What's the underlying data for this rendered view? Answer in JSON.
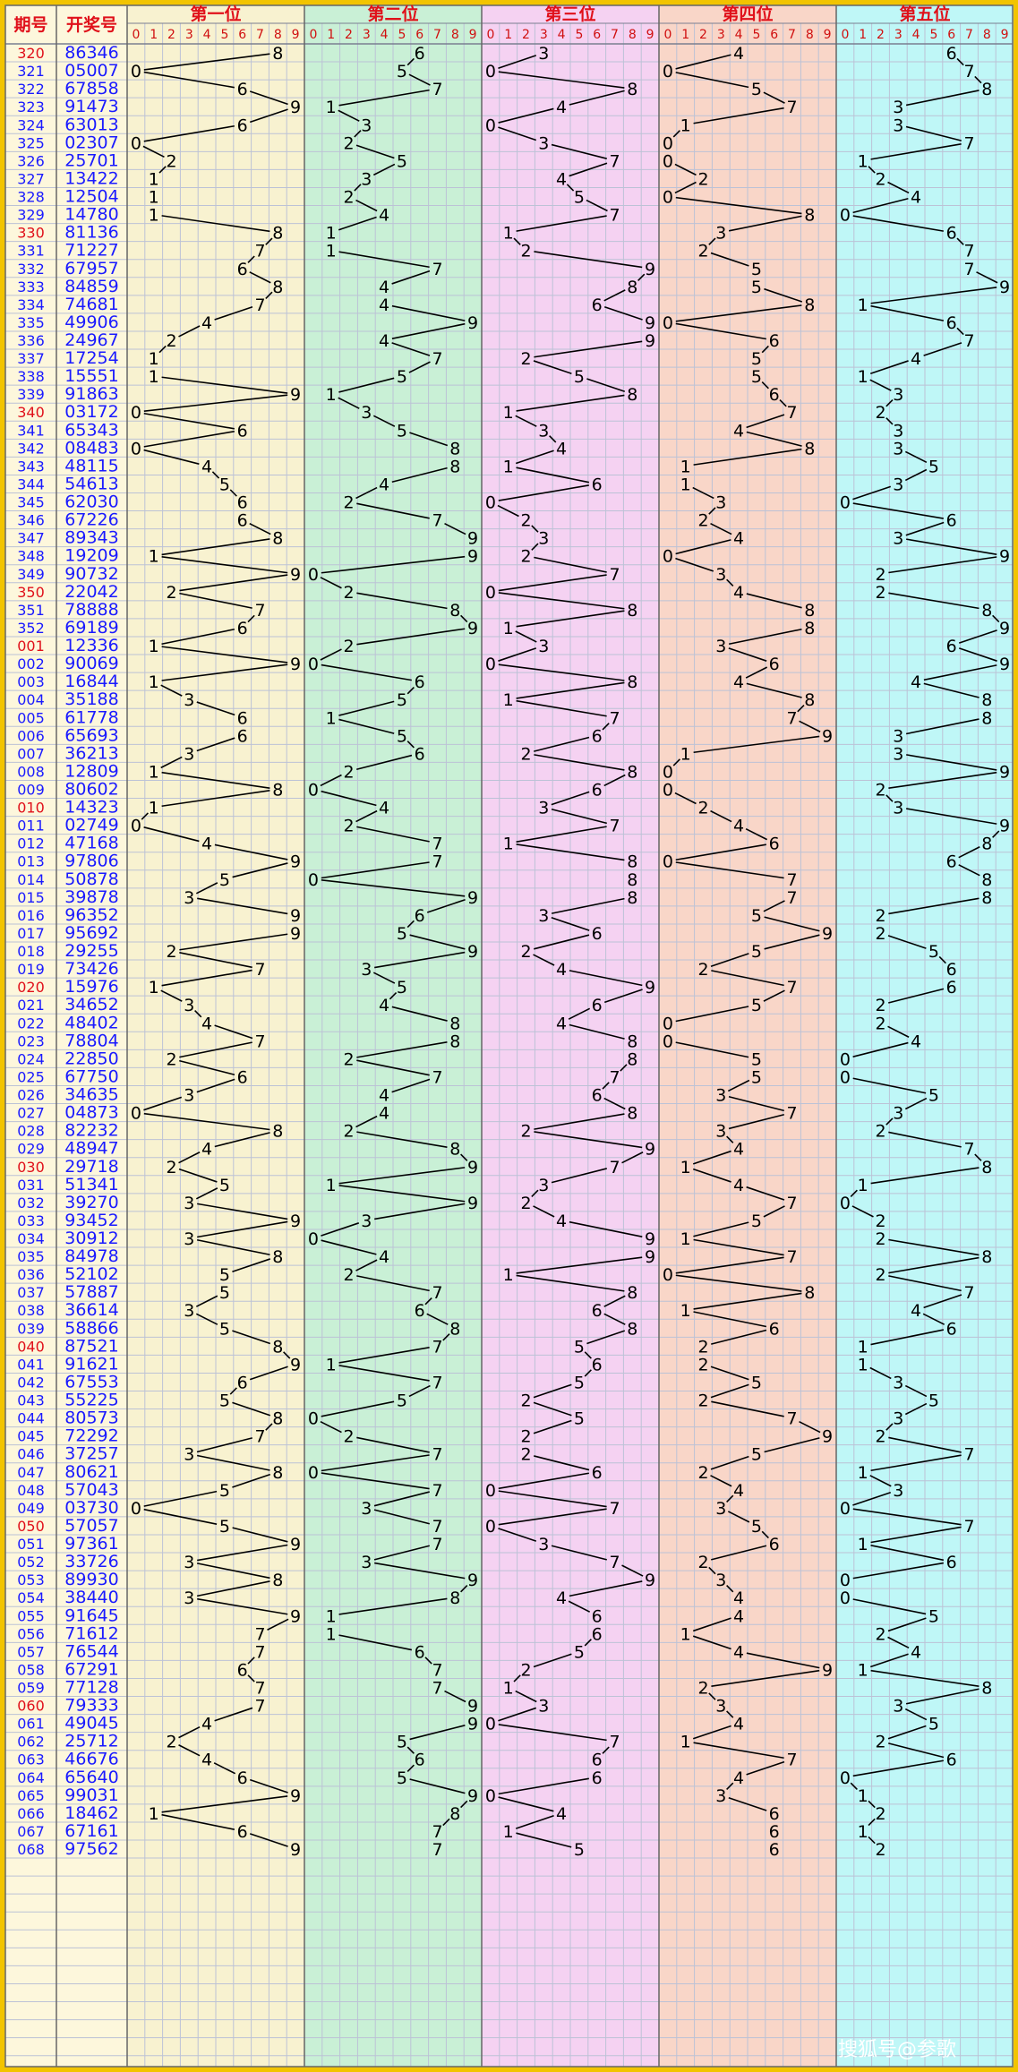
{
  "headers": {
    "issue": "期号",
    "draw": "开奖号",
    "positions": [
      "第一位",
      "第二位",
      "第三位",
      "第四位",
      "第五位"
    ],
    "digits": [
      "0",
      "1",
      "2",
      "3",
      "4",
      "5",
      "6",
      "7",
      "8",
      "9"
    ]
  },
  "colors": {
    "frame": "#f2c400",
    "left_panel": "#fdf7dc",
    "grid": "#bcc2d6",
    "issue_red": "#e0101a",
    "issue_blue": "#1a1aff",
    "draw_number": "#1a1aff",
    "line": "#000000",
    "position_backgrounds": [
      "#f8f2d0",
      "#c9f0d6",
      "#f5d2f2",
      "#f9d6c8",
      "#bff7f7"
    ]
  },
  "watermark": "搜狐号@参歌",
  "chart_data": {
    "type": "line",
    "x_axis": "digit 0-9 within each position column",
    "issues": [
      "320",
      "321",
      "322",
      "323",
      "324",
      "325",
      "326",
      "327",
      "328",
      "329",
      "330",
      "331",
      "332",
      "333",
      "334",
      "335",
      "336",
      "337",
      "338",
      "339",
      "340",
      "341",
      "342",
      "343",
      "344",
      "345",
      "346",
      "347",
      "348",
      "349",
      "350",
      "351",
      "352",
      "001",
      "002",
      "003",
      "004",
      "005",
      "006",
      "007",
      "008",
      "009",
      "010",
      "011",
      "012",
      "013",
      "014",
      "015",
      "016",
      "017",
      "018",
      "019",
      "020",
      "021",
      "022",
      "023",
      "024",
      "025",
      "026",
      "027",
      "028",
      "029",
      "030",
      "031",
      "032",
      "033",
      "034",
      "035",
      "036",
      "037",
      "038",
      "039",
      "040",
      "041",
      "042",
      "043",
      "044",
      "045",
      "046",
      "047",
      "048",
      "049",
      "050",
      "051",
      "052",
      "053",
      "054",
      "055",
      "056",
      "057",
      "058",
      "059",
      "060",
      "061",
      "062",
      "063",
      "064",
      "065",
      "066",
      "067",
      "068"
    ],
    "red_issues": [
      "320",
      "330",
      "340",
      "350",
      "001",
      "010",
      "020",
      "030",
      "040",
      "050",
      "060"
    ],
    "draws": [
      "86346",
      "05007",
      "67858",
      "91473",
      "63013",
      "02307",
      "25701",
      "13422",
      "12504",
      "14780",
      "81136",
      "71227",
      "67957",
      "84859",
      "74681",
      "49906",
      "24967",
      "17254",
      "15551",
      "91863",
      "03172",
      "65343",
      "08483",
      "48115",
      "54613",
      "62030",
      "67226",
      "89343",
      "19209",
      "90732",
      "22042",
      "78888",
      "69189",
      "12336",
      "90069",
      "16844",
      "35188",
      "61778",
      "65693",
      "36213",
      "12809",
      "80602",
      "14323",
      "02749",
      "47168",
      "97806",
      "50878",
      "39878",
      "96352",
      "95692",
      "29255",
      "73426",
      "15976",
      "34652",
      "48402",
      "78804",
      "22850",
      "67750",
      "34635",
      "04873",
      "82232",
      "48947",
      "29718",
      "51341",
      "39270",
      "93452",
      "30912",
      "84978",
      "52102",
      "57887",
      "36614",
      "58866",
      "87521",
      "91621",
      "67553",
      "55225",
      "80573",
      "72292",
      "37257",
      "80621",
      "57043",
      "03730",
      "57057",
      "97361",
      "33726",
      "89930",
      "38440",
      "91645",
      "71612",
      "76544",
      "67291",
      "77128",
      "79333",
      "49045",
      "25712",
      "46676",
      "65640",
      "99031",
      "18462",
      "67161",
      "97562"
    ]
  }
}
